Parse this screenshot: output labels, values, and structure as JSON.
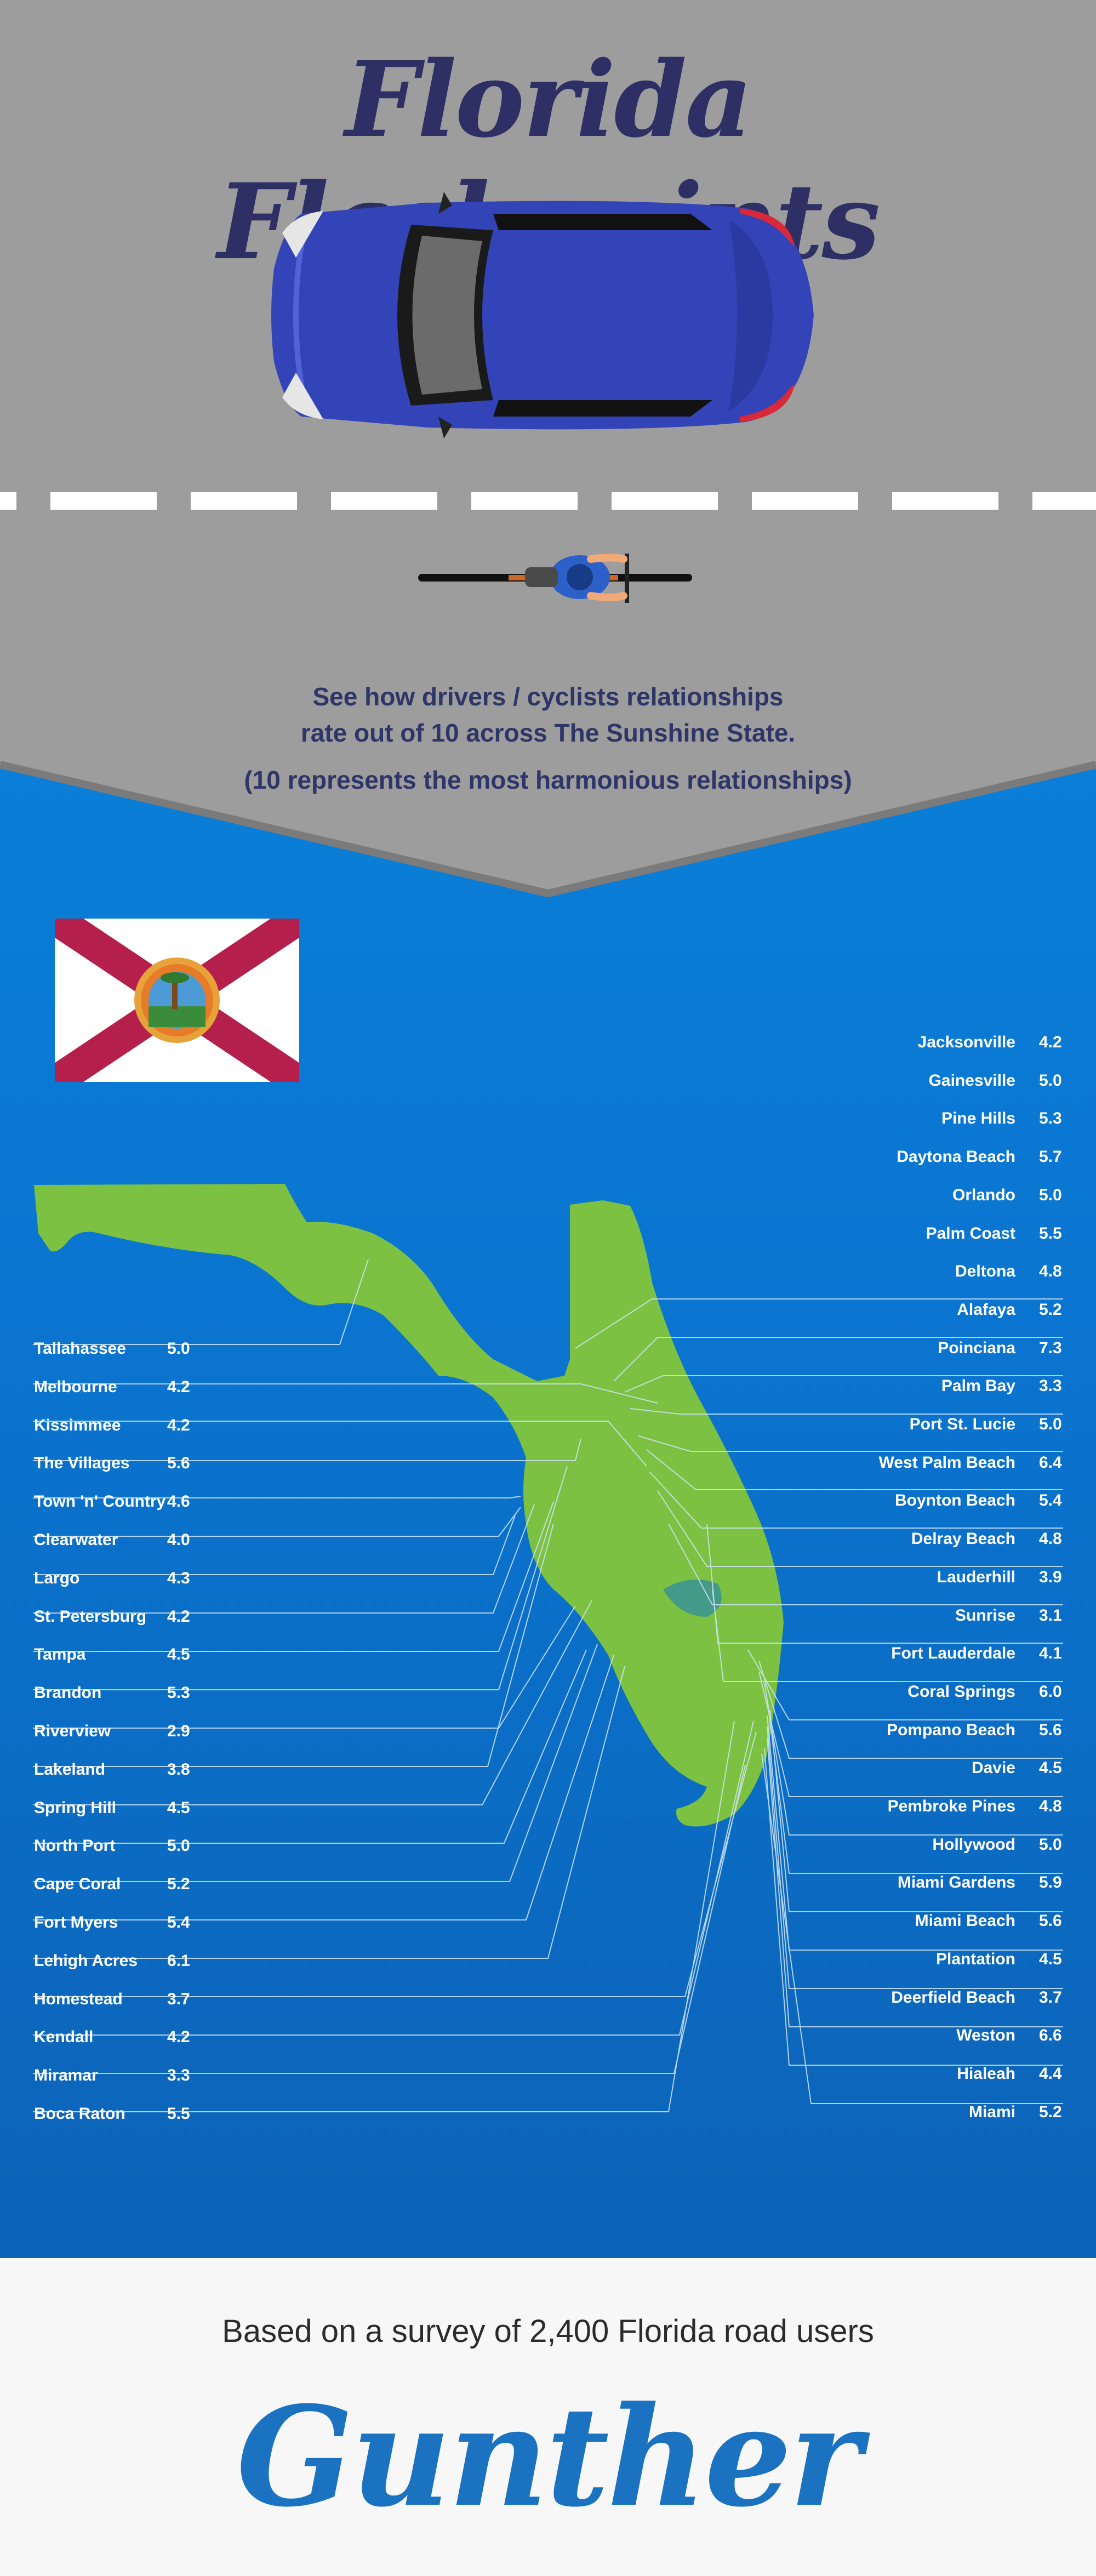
{
  "header": {
    "title": "Florida Flashpoints",
    "subtitle_line1": "See how drivers / cyclists relationships",
    "subtitle_line2": "rate out of 10 across The Sunshine State.",
    "subtitle_line3": "(10 represents the most harmonious relationships)"
  },
  "colors": {
    "grey_bg": "#9d9d9d",
    "blue_bg": "#0a7fd8",
    "title": "#2e2f64",
    "map_green": "#7cc142",
    "flag_red": "#b51f4b",
    "brand_blue": "#1a72c0"
  },
  "icons": {
    "car": "car-icon",
    "cyclist": "cyclist-icon",
    "flag": "florida-flag",
    "map": "florida-map"
  },
  "left_cities": [
    {
      "name": "Tallahassee",
      "value": "5.0"
    },
    {
      "name": "Melbourne",
      "value": "4.2"
    },
    {
      "name": "Kissimmee",
      "value": "4.2"
    },
    {
      "name": "The Villages",
      "value": "5.6"
    },
    {
      "name": "Town 'n' Country",
      "value": "4.6"
    },
    {
      "name": "Clearwater",
      "value": "4.0"
    },
    {
      "name": "Largo",
      "value": "4.3"
    },
    {
      "name": "St. Petersburg",
      "value": "4.2"
    },
    {
      "name": "Tampa",
      "value": "4.5"
    },
    {
      "name": "Brandon",
      "value": "5.3"
    },
    {
      "name": "Riverview",
      "value": "2.9"
    },
    {
      "name": "Lakeland",
      "value": "3.8"
    },
    {
      "name": "Spring Hill",
      "value": "4.5"
    },
    {
      "name": "North Port",
      "value": "5.0"
    },
    {
      "name": "Cape Coral",
      "value": "5.2"
    },
    {
      "name": "Fort Myers",
      "value": "5.4"
    },
    {
      "name": "Lehigh Acres",
      "value": "6.1"
    },
    {
      "name": "Homestead",
      "value": "3.7"
    },
    {
      "name": "Kendall",
      "value": "4.2"
    },
    {
      "name": "Miramar",
      "value": "3.3"
    },
    {
      "name": "Boca Raton",
      "value": "5.5"
    }
  ],
  "right_cities": [
    {
      "name": "Jacksonville",
      "value": "4.2"
    },
    {
      "name": "Gainesville",
      "value": "5.0"
    },
    {
      "name": "Pine Hills",
      "value": "5.3"
    },
    {
      "name": "Daytona Beach",
      "value": "5.7"
    },
    {
      "name": "Orlando",
      "value": "5.0"
    },
    {
      "name": "Palm Coast",
      "value": "5.5"
    },
    {
      "name": "Deltona",
      "value": "4.8"
    },
    {
      "name": "Alafaya",
      "value": "5.2"
    },
    {
      "name": "Poinciana",
      "value": "7.3"
    },
    {
      "name": "Palm Bay",
      "value": "3.3"
    },
    {
      "name": "Port St. Lucie",
      "value": "5.0"
    },
    {
      "name": "West Palm Beach",
      "value": "6.4"
    },
    {
      "name": "Boynton Beach",
      "value": "5.4"
    },
    {
      "name": "Delray Beach",
      "value": "4.8"
    },
    {
      "name": "Lauderhill",
      "value": "3.9"
    },
    {
      "name": "Sunrise",
      "value": "3.1"
    },
    {
      "name": "Fort Lauderdale",
      "value": "4.1"
    },
    {
      "name": "Coral Springs",
      "value": "6.0"
    },
    {
      "name": "Pompano Beach",
      "value": "5.6"
    },
    {
      "name": "Davie",
      "value": "4.5"
    },
    {
      "name": "Pembroke Pines",
      "value": "4.8"
    },
    {
      "name": "Hollywood",
      "value": "5.0"
    },
    {
      "name": "Miami Gardens",
      "value": "5.9"
    },
    {
      "name": "Miami Beach",
      "value": "5.6"
    },
    {
      "name": "Plantation",
      "value": "4.5"
    },
    {
      "name": "Deerfield Beach",
      "value": "3.7"
    },
    {
      "name": "Weston",
      "value": "6.6"
    },
    {
      "name": "Hialeah",
      "value": "4.4"
    },
    {
      "name": "Miami",
      "value": "5.2"
    }
  ],
  "footer": {
    "survey_text": "Based on a survey of 2,400 Florida road users",
    "brand": "Gunther"
  }
}
